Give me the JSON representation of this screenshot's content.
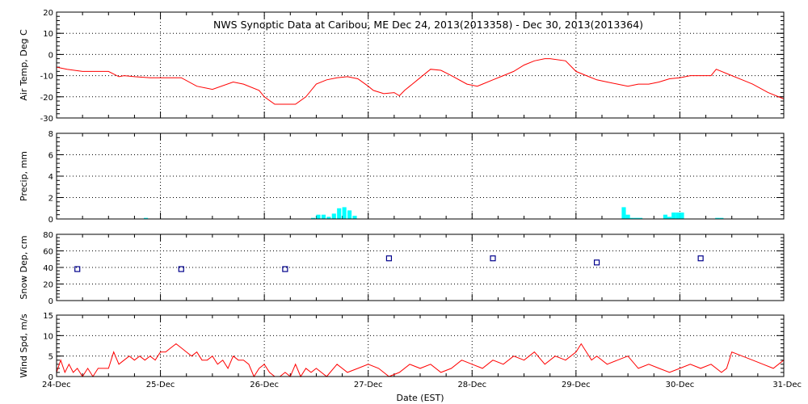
{
  "title": "NWS Synoptic Data at Caribou, ME   Dec 24, 2013(2013358) - Dec 30, 2013(2013364)",
  "x_axis": {
    "label": "Date (EST)",
    "ticks": [
      "24-Dec",
      "25-Dec",
      "26-Dec",
      "27-Dec",
      "28-Dec",
      "29-Dec",
      "30-Dec",
      "31-Dec"
    ],
    "range_days": [
      0,
      7
    ],
    "grid": true
  },
  "colors": {
    "line": "#ff0000",
    "bar": "#00ffff",
    "marker": "#00008b",
    "axes": "#000000"
  },
  "chart_data": [
    {
      "id": "air_temp",
      "type": "line",
      "ylabel": "Air Temp, Deg C",
      "ylim": [
        -30,
        20
      ],
      "yticks": [
        -30,
        -20,
        -10,
        0,
        10,
        20
      ],
      "x_units": "days since 24-Dec 00:00 EST",
      "x": [
        0,
        0.1,
        0.25,
        0.35,
        0.5,
        0.6,
        0.65,
        0.75,
        0.9,
        1,
        1.2,
        1.35,
        1.5,
        1.7,
        1.8,
        1.95,
        2,
        2.1,
        2.2,
        2.3,
        2.4,
        2.5,
        2.6,
        2.7,
        2.8,
        2.9,
        3,
        3.05,
        3.15,
        3.25,
        3.3,
        3.35,
        3.4,
        3.5,
        3.6,
        3.7,
        3.8,
        3.95,
        4.05,
        4.1,
        4.2,
        4.3,
        4.4,
        4.5,
        4.6,
        4.7,
        4.75,
        4.9,
        5,
        5.1,
        5.2,
        5.3,
        5.4,
        5.5,
        5.6,
        5.7,
        5.8,
        5.9,
        6,
        6.1,
        6.2,
        6.3,
        6.35,
        6.45,
        6.6,
        6.7,
        6.85,
        7
      ],
      "values": [
        -6,
        -7,
        -8,
        -8,
        -8,
        -10.5,
        -10,
        -10.5,
        -11,
        -11,
        -11,
        -15,
        -16.5,
        -13,
        -14,
        -17,
        -20,
        -23.5,
        -23.5,
        -23.5,
        -20,
        -14,
        -12,
        -11,
        -10.5,
        -11.5,
        -15,
        -17,
        -18.5,
        -18,
        -19.5,
        -17,
        -15,
        -11,
        -7,
        -7.5,
        -10,
        -14,
        -15,
        -14,
        -12,
        -10,
        -8,
        -5,
        -3,
        -2,
        -2,
        -3,
        -8,
        -10,
        -12,
        -13,
        -14,
        -15,
        -14,
        -14,
        -13,
        -11.5,
        -11,
        -10,
        -10,
        -10,
        -7,
        -9,
        -12,
        -14,
        -18,
        -21
      ],
      "series_name": ""
    },
    {
      "id": "precip",
      "type": "bar",
      "ylabel": "Precip, mm",
      "ylim": [
        0,
        8
      ],
      "yticks": [
        0,
        2,
        4,
        6,
        8
      ],
      "x_units": "days since 24-Dec 00:00 EST",
      "bar_width_days": 0.04,
      "x": [
        0.84,
        2.45,
        2.5,
        2.55,
        2.6,
        2.65,
        2.7,
        2.75,
        2.8,
        2.85,
        5.44,
        5.48,
        5.52,
        5.56,
        5.6,
        5.64,
        5.84,
        5.88,
        5.92,
        5.96,
        6,
        6.04,
        6.08,
        6.34,
        6.38
      ],
      "values": [
        0.1,
        0.1,
        0.4,
        0.4,
        0.2,
        0.5,
        1,
        1.1,
        0.8,
        0.3,
        1.1,
        0.4,
        0.1,
        0.1,
        0.1,
        0,
        0.4,
        0.2,
        0.6,
        0.6,
        0.6,
        0,
        0,
        0.1,
        0.1
      ]
    },
    {
      "id": "snow_depth",
      "type": "scatter",
      "ylabel": "Snow Dep, cm",
      "ylim": [
        0,
        80
      ],
      "yticks": [
        0,
        20,
        40,
        60,
        80
      ],
      "x_units": "days since 24-Dec 00:00 EST",
      "x": [
        0.2,
        1.2,
        2.2,
        3.2,
        4.2,
        5.2,
        6.2
      ],
      "values": [
        38,
        38,
        38,
        51,
        51,
        46,
        51
      ]
    },
    {
      "id": "wind_speed",
      "type": "line",
      "ylabel": "Wind Spd, m/s",
      "ylim": [
        0,
        15
      ],
      "yticks": [
        0,
        5,
        10,
        15
      ],
      "x_units": "days since 24-Dec 00:00 EST",
      "x": [
        0,
        0.04,
        0.08,
        0.12,
        0.16,
        0.2,
        0.25,
        0.3,
        0.35,
        0.4,
        0.5,
        0.55,
        0.6,
        0.65,
        0.7,
        0.75,
        0.8,
        0.85,
        0.9,
        0.95,
        1,
        1.05,
        1.1,
        1.15,
        1.2,
        1.25,
        1.3,
        1.35,
        1.4,
        1.45,
        1.5,
        1.55,
        1.6,
        1.65,
        1.7,
        1.75,
        1.8,
        1.85,
        1.9,
        1.95,
        2,
        2.05,
        2.1,
        2.15,
        2.2,
        2.25,
        2.3,
        2.35,
        2.4,
        2.45,
        2.5,
        2.6,
        2.7,
        2.8,
        2.9,
        3,
        3.1,
        3.2,
        3.3,
        3.4,
        3.5,
        3.6,
        3.7,
        3.8,
        3.9,
        4,
        4.1,
        4.2,
        4.3,
        4.4,
        4.5,
        4.6,
        4.7,
        4.8,
        4.9,
        5,
        5.05,
        5.1,
        5.15,
        5.2,
        5.3,
        5.4,
        5.5,
        5.6,
        5.7,
        5.8,
        5.9,
        6,
        6.1,
        6.2,
        6.3,
        6.4,
        6.45,
        6.5,
        6.6,
        6.7,
        6.8,
        6.9,
        7
      ],
      "values": [
        1,
        4,
        1,
        3,
        1,
        2,
        0,
        2,
        0,
        2,
        2,
        6,
        3,
        4,
        5,
        4,
        5,
        4,
        5,
        4,
        6,
        6,
        7,
        8,
        7,
        6,
        5,
        6,
        4,
        4,
        5,
        3,
        4,
        2,
        5,
        4,
        4,
        3,
        0,
        2,
        3,
        1,
        0,
        0,
        1,
        0,
        3,
        0,
        2,
        1,
        2,
        0,
        3,
        1,
        2,
        3,
        2,
        0,
        1,
        3,
        2,
        3,
        1,
        2,
        4,
        3,
        2,
        4,
        3,
        5,
        4,
        6,
        3,
        5,
        4,
        6,
        8,
        6,
        4,
        5,
        3,
        4,
        5,
        2,
        3,
        2,
        1,
        2,
        3,
        2,
        3,
        1,
        2,
        6,
        5,
        4,
        3,
        2,
        4
      ]
    }
  ]
}
